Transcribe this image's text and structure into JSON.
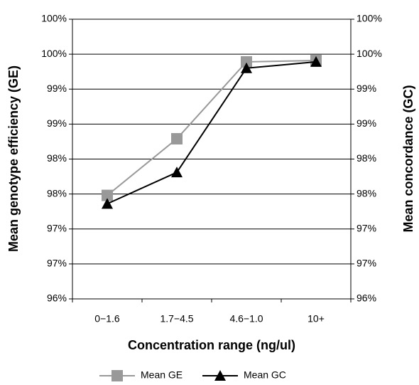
{
  "chart_data": {
    "type": "line",
    "x_label": "Concentration range (ng/ul)",
    "y_label": "Mean genotype efficiency (GE)",
    "y2_label": "Mean concordance (GC)",
    "categories": [
      "0−1.6",
      "1.7−4.5",
      "4.6−1.0",
      "10+"
    ],
    "series": [
      {
        "name": "Mean GE",
        "color": "#999999",
        "marker": "square",
        "values": [
          97.48,
          98.29,
          99.39,
          99.41
        ]
      },
      {
        "name": "Mean GC",
        "color": "#000000",
        "marker": "triangle",
        "axis": "y2",
        "values": [
          97.36,
          97.81,
          99.3,
          99.39
        ]
      }
    ],
    "ylim": [
      96,
      100
    ],
    "yticks": [
      {
        "value": 96,
        "label": "96%"
      },
      {
        "value": 96.5,
        "label": "97%"
      },
      {
        "value": 97,
        "label": "97%"
      },
      {
        "value": 97.5,
        "label": "98%"
      },
      {
        "value": 98,
        "label": "98%"
      },
      {
        "value": 98.5,
        "label": "99%"
      },
      {
        "value": 99,
        "label": "99%"
      },
      {
        "value": 99.5,
        "label": "100%"
      },
      {
        "value": 100,
        "label": "100%"
      }
    ],
    "y2lim": [
      96,
      100
    ],
    "y2ticks": [
      {
        "value": 96,
        "label": "96%"
      },
      {
        "value": 96.5,
        "label": "97%"
      },
      {
        "value": 97,
        "label": "97%"
      },
      {
        "value": 97.5,
        "label": "98%"
      },
      {
        "value": 98,
        "label": "98%"
      },
      {
        "value": 98.5,
        "label": "99%"
      },
      {
        "value": 99,
        "label": "99%"
      },
      {
        "value": 99.5,
        "label": "100%"
      },
      {
        "value": 100,
        "label": "100%"
      }
    ],
    "grid": true,
    "legend": "bottom"
  }
}
